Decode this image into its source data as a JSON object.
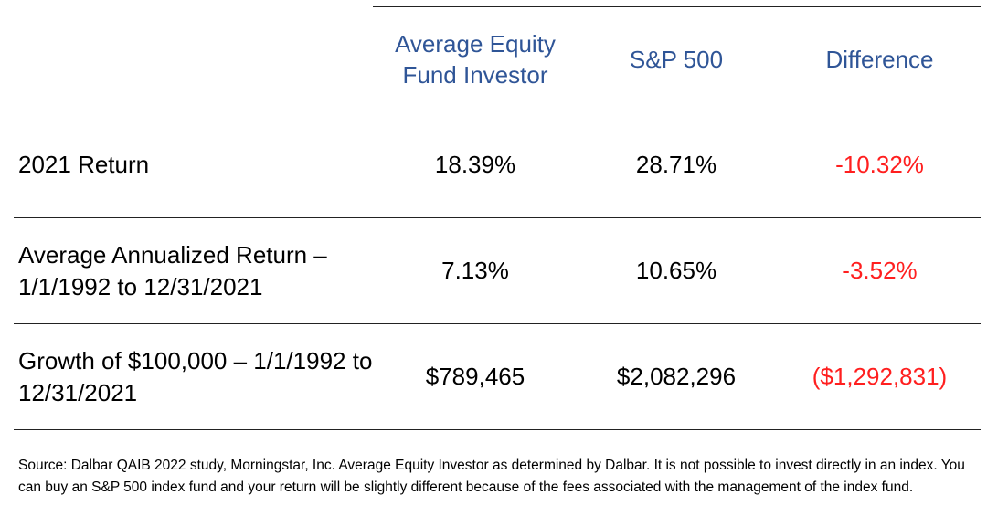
{
  "header": {
    "col1": "Average Equity Fund Investor",
    "col2": "S&P 500",
    "col3": "Difference"
  },
  "rows": [
    {
      "label": "2021 Return",
      "investor": "18.39%",
      "sp500": "28.71%",
      "difference": "-10.32%"
    },
    {
      "label": "Average Annualized Return – 1/1/1992 to 12/31/2021",
      "investor": "7.13%",
      "sp500": "10.65%",
      "difference": "-3.52%"
    },
    {
      "label": "Growth of $100,000 – 1/1/1992 to 12/31/2021",
      "investor": "$789,465",
      "sp500": "$2,082,296",
      "difference": "($1,292,831)"
    }
  ],
  "source": "Source: Dalbar QAIB 2022 study, Morningstar, Inc. Average Equity Investor as determined by Dalbar. It is not possible to invest directly in an index. You can buy an S&P 500 index fund and your return will be slightly different because of the fees associated with the management of the index fund.",
  "colors": {
    "header_text": "#2f5597",
    "negative_text": "#ff1f1f",
    "rule": "#222222"
  }
}
